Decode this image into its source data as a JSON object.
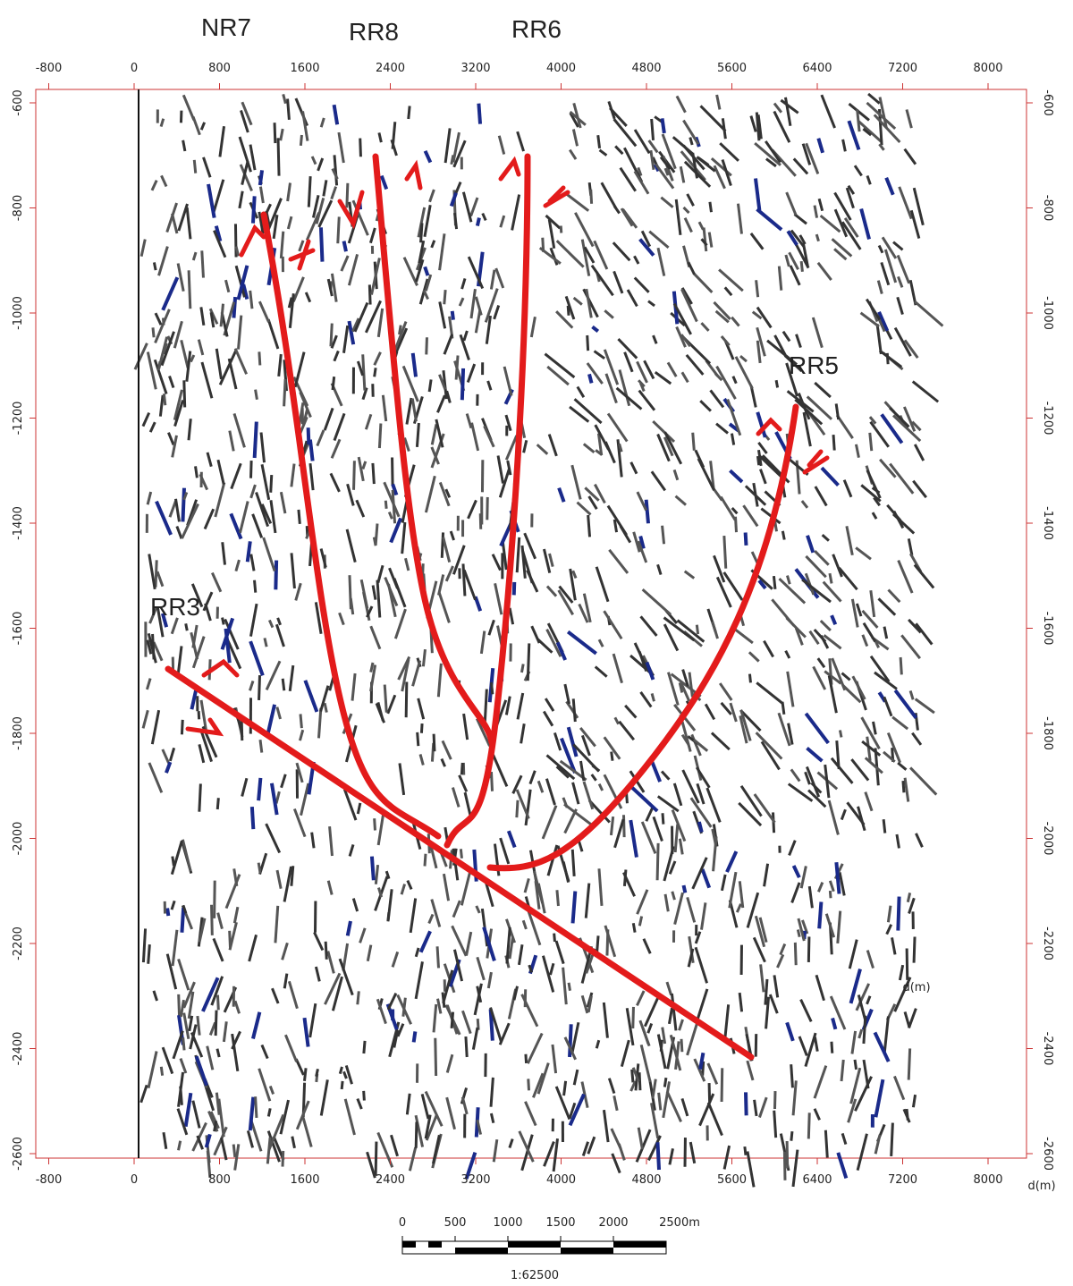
{
  "fault_labels": [
    "NR7",
    "RR8",
    "RR6",
    "RR5",
    "RR3"
  ],
  "axis_unit": "d(m)",
  "x_axis": {
    "ticks": [
      -800,
      0,
      800,
      1600,
      2400,
      3200,
      4000,
      4800,
      5600,
      6400,
      7200,
      8000
    ]
  },
  "y_axis": {
    "ticks": [
      -600,
      -800,
      -1000,
      -1200,
      -1400,
      -1600,
      -1800,
      -2000,
      -2200,
      -2400,
      -2600
    ]
  },
  "scale_bar": {
    "ticks": [
      0,
      500,
      1000,
      1500,
      2000
    ],
    "end_label": "2500m",
    "ratio": "1:62500"
  }
}
